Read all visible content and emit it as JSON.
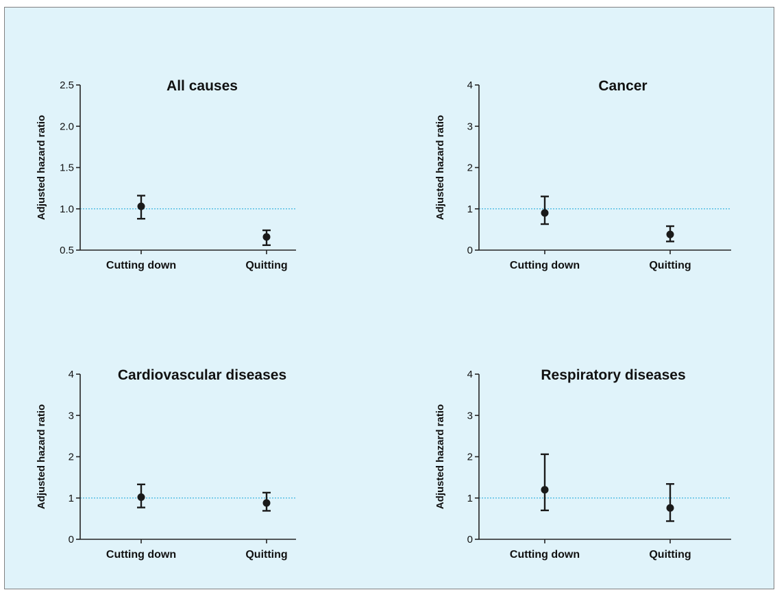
{
  "colors": {
    "background": "#e0f3fa",
    "border": "#808080",
    "axis": "#222222",
    "marker": "#1a1a1a",
    "reference_line": "#3cb4e0"
  },
  "chart_data": [
    {
      "type": "scatter",
      "title": "All causes",
      "ylabel": "Adjusted hazard ratio",
      "categories": [
        "Cutting down",
        "Quitting"
      ],
      "values": [
        1.03,
        0.66
      ],
      "ci_lower": [
        0.88,
        0.56
      ],
      "ci_upper": [
        1.16,
        0.74
      ],
      "ylim": [
        0.5,
        2.5
      ],
      "yticks": [
        "0.5",
        "1.0",
        "1.5",
        "2.0",
        "2.5"
      ],
      "reference_line": 1.0
    },
    {
      "type": "scatter",
      "title": "Cancer",
      "ylabel": "Adjusted hazard ratio",
      "categories": [
        "Cutting down",
        "Quitting"
      ],
      "values": [
        0.9,
        0.38
      ],
      "ci_lower": [
        0.63,
        0.21
      ],
      "ci_upper": [
        1.3,
        0.58
      ],
      "ylim": [
        0,
        4
      ],
      "yticks": [
        "0",
        "1",
        "2",
        "3",
        "4"
      ],
      "reference_line": 1
    },
    {
      "type": "scatter",
      "title": "Cardiovascular diseases",
      "ylabel": "Adjusted hazard ratio",
      "categories": [
        "Cutting down",
        "Quitting"
      ],
      "values": [
        1.02,
        0.88
      ],
      "ci_lower": [
        0.77,
        0.69
      ],
      "ci_upper": [
        1.33,
        1.13
      ],
      "ylim": [
        0,
        4
      ],
      "yticks": [
        "0",
        "1",
        "2",
        "3",
        "4"
      ],
      "reference_line": 1
    },
    {
      "type": "scatter",
      "title": "Respiratory diseases",
      "ylabel": "Adjusted hazard ratio",
      "categories": [
        "Cutting down",
        "Quitting"
      ],
      "values": [
        1.2,
        0.76
      ],
      "ci_lower": [
        0.7,
        0.44
      ],
      "ci_upper": [
        2.06,
        1.34
      ],
      "ylim": [
        0,
        4
      ],
      "yticks": [
        "0",
        "1",
        "2",
        "3",
        "4"
      ],
      "reference_line": 1
    }
  ]
}
